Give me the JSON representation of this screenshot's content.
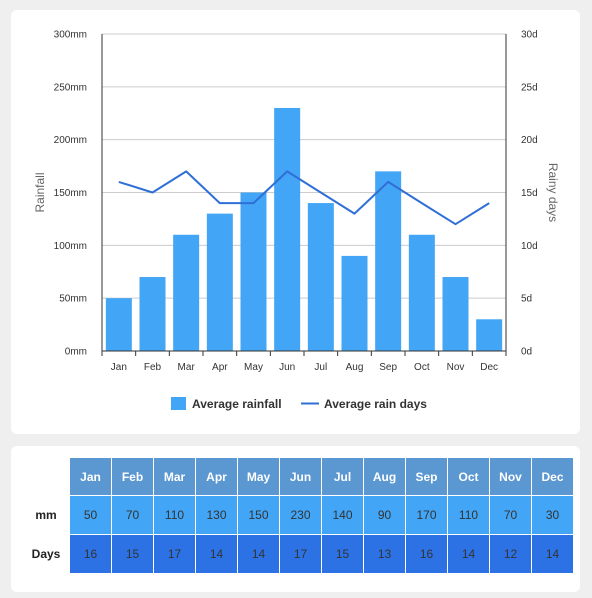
{
  "chart_data": {
    "type": "bar",
    "categories": [
      "Jan",
      "Feb",
      "Mar",
      "Apr",
      "May",
      "Jun",
      "Jul",
      "Aug",
      "Sep",
      "Oct",
      "Nov",
      "Dec"
    ],
    "series": [
      {
        "name": "Average rainfall",
        "type": "bar",
        "axis": "left",
        "color": "#42a5f5",
        "values": [
          50,
          70,
          110,
          130,
          150,
          230,
          140,
          90,
          170,
          110,
          70,
          30
        ]
      },
      {
        "name": "Average rain days",
        "type": "line",
        "axis": "right",
        "color": "#2f6fd6",
        "values": [
          16,
          15,
          17,
          14,
          14,
          17,
          15,
          13,
          16,
          14,
          12,
          14
        ]
      }
    ],
    "ylabel": "Rainfall",
    "ylabel_right": "Rainy days",
    "ylim": [
      0,
      300
    ],
    "ylim_right": [
      0,
      30
    ],
    "yticks": [
      "0mm",
      "50mm",
      "100mm",
      "150mm",
      "200mm",
      "250mm",
      "300mm"
    ],
    "yticks_right": [
      "0d",
      "5d",
      "10d",
      "15d",
      "20d",
      "25d",
      "30d"
    ],
    "grid": true,
    "legend": "bottom"
  },
  "table": {
    "months": [
      "Jan",
      "Feb",
      "Mar",
      "Apr",
      "May",
      "Jun",
      "Jul",
      "Aug",
      "Sep",
      "Oct",
      "Nov",
      "Dec"
    ],
    "rows": [
      {
        "label": "mm",
        "values": [
          "50",
          "70",
          "110",
          "130",
          "150",
          "230",
          "140",
          "90",
          "170",
          "110",
          "70",
          "30"
        ]
      },
      {
        "label": "Days",
        "values": [
          "16",
          "15",
          "17",
          "14",
          "14",
          "17",
          "15",
          "13",
          "16",
          "14",
          "12",
          "14"
        ]
      }
    ]
  }
}
